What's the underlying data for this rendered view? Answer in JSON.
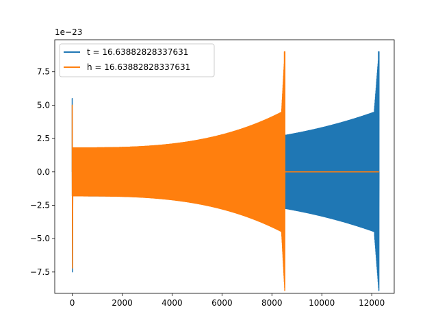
{
  "chart_data": {
    "type": "line",
    "title": "",
    "xlabel": "",
    "ylabel": "",
    "offset_text": "1e−23",
    "xlim": [
      -700,
      12900
    ],
    "ylim": [
      -9.1,
      9.9
    ],
    "x_ticks": [
      0,
      2000,
      4000,
      6000,
      8000,
      10000,
      12000
    ],
    "x_tick_labels": [
      "0",
      "2000",
      "4000",
      "6000",
      "8000",
      "10000",
      "12000"
    ],
    "y_ticks": [
      -7.5,
      -5.0,
      -2.5,
      0.0,
      2.5,
      5.0,
      7.5
    ],
    "y_tick_labels": [
      "−7.5",
      "−5.0",
      "−2.5",
      "0.0",
      "2.5",
      "5.0",
      "7.5"
    ],
    "grid": false,
    "legend_position": "upper-left",
    "series": [
      {
        "name": "t = 16.63882828337631",
        "color": "#1f77b4",
        "x_start": 0,
        "x_end": 12290,
        "envelope_start": 1.8,
        "envelope_end": 4.6,
        "peak_max": 9.0,
        "peak_min": -8.2,
        "startup_spike_max": 5.5,
        "startup_spike_min": -7.5
      },
      {
        "name": "h = 16.63882828337631",
        "color": "#ff7f0e",
        "x_start": 0,
        "x_end": 8520,
        "flat_until": 12290,
        "envelope_start": 1.8,
        "envelope_end": 4.6,
        "peak_max": 9.0,
        "peak_min": -8.2,
        "startup_spike_max": 5.0,
        "startup_spike_min": -7.2
      }
    ]
  }
}
